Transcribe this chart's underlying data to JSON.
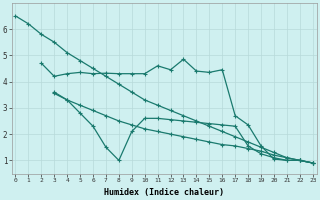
{
  "xlabel": "Humidex (Indice chaleur)",
  "background_color": "#cff0f0",
  "grid_color": "#b8dada",
  "line_color": "#1a7a6e",
  "xlim": [
    0,
    23
  ],
  "ylim": [
    0.5,
    7.0
  ],
  "yticks": [
    1,
    2,
    3,
    4,
    5,
    6
  ],
  "xticks": [
    0,
    1,
    2,
    3,
    4,
    5,
    6,
    7,
    8,
    9,
    10,
    11,
    12,
    13,
    14,
    15,
    16,
    17,
    18,
    19,
    20,
    21,
    22,
    23
  ],
  "line1_x": [
    0,
    1,
    2,
    3,
    4,
    5,
    6,
    7,
    8,
    9,
    10,
    11,
    12,
    13,
    14,
    15,
    16,
    17,
    18,
    19,
    20,
    21,
    22,
    23
  ],
  "line1_y": [
    6.5,
    6.2,
    5.8,
    5.5,
    5.1,
    4.8,
    4.5,
    4.2,
    3.9,
    3.6,
    3.3,
    3.1,
    2.9,
    2.7,
    2.5,
    2.3,
    2.1,
    1.9,
    1.7,
    1.5,
    1.3,
    1.1,
    1.0,
    0.9
  ],
  "line2_x": [
    2,
    3,
    4,
    5,
    6,
    7,
    8,
    9,
    10,
    11,
    12,
    13,
    14,
    15,
    16,
    17,
    18,
    19,
    20,
    21,
    22,
    23
  ],
  "line2_y": [
    4.7,
    4.2,
    4.3,
    4.35,
    4.3,
    4.32,
    4.3,
    4.3,
    4.3,
    4.6,
    4.45,
    4.85,
    4.4,
    4.35,
    4.45,
    2.7,
    2.35,
    1.55,
    1.05,
    1.0,
    1.0,
    0.9
  ],
  "line3_x": [
    3,
    4,
    5,
    6,
    7,
    8,
    9,
    10,
    11,
    12,
    13,
    14,
    15,
    16,
    17,
    18,
    19,
    20,
    21,
    22,
    23
  ],
  "line3_y": [
    3.6,
    3.3,
    2.8,
    2.3,
    1.5,
    1.0,
    2.1,
    2.6,
    2.6,
    2.55,
    2.5,
    2.45,
    2.4,
    2.35,
    2.3,
    1.55,
    1.25,
    1.1,
    1.0,
    1.0,
    0.9
  ],
  "line4_x": [
    3,
    4,
    5,
    6,
    7,
    8,
    9,
    10,
    11,
    12,
    13,
    14,
    15,
    16,
    17,
    18,
    19,
    20,
    21,
    22,
    23
  ],
  "line4_y": [
    3.55,
    3.3,
    3.1,
    2.9,
    2.7,
    2.5,
    2.35,
    2.2,
    2.1,
    2.0,
    1.9,
    1.8,
    1.7,
    1.6,
    1.55,
    1.45,
    1.35,
    1.2,
    1.1,
    1.0,
    0.9
  ]
}
